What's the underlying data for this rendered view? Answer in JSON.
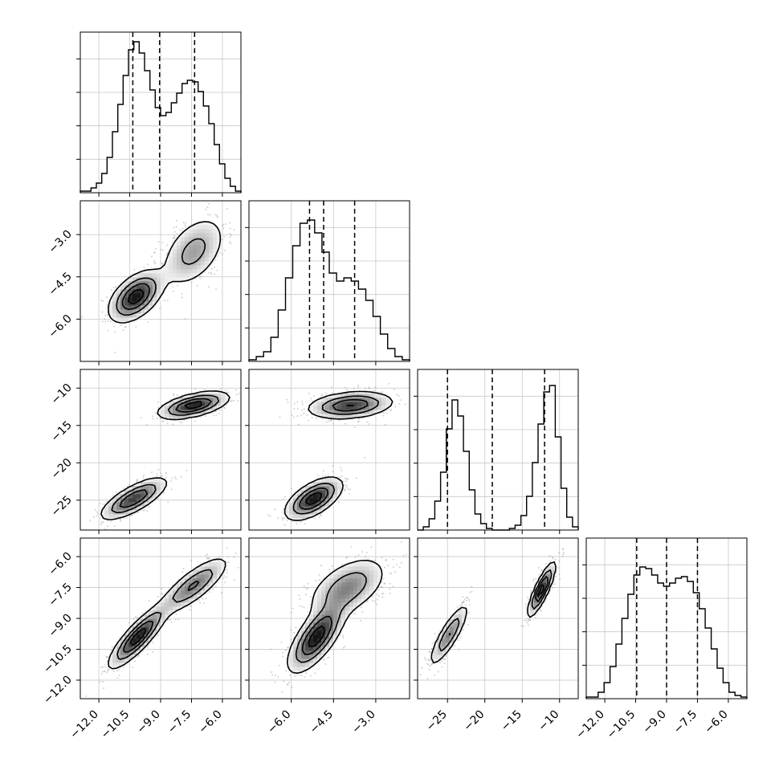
{
  "chart_data": {
    "type": "corner",
    "description_units": "data units",
    "parameters": [
      {
        "index": 0,
        "range": [
          -12.9,
          -5.1
        ],
        "ticks": [
          -12.0,
          -10.5,
          -9.0,
          -7.5,
          -6.0
        ],
        "tick_labels": [
          "−12.0",
          "−10.5",
          "−9.0",
          "−7.5",
          "−6.0"
        ]
      },
      {
        "index": 1,
        "range": [
          -7.5,
          -1.8
        ],
        "ticks": [
          -6.0,
          -4.5,
          -3.0
        ],
        "tick_labels": [
          "−6.0",
          "−4.5",
          "−3.0"
        ]
      },
      {
        "index": 2,
        "range": [
          -29,
          -7.5
        ],
        "ticks": [
          -25,
          -20,
          -15,
          -10
        ],
        "tick_labels": [
          "−25",
          "−20",
          "−15",
          "−10"
        ],
        "y_ticks": [
          -10,
          -15,
          -20,
          -25
        ],
        "y_tick_labels": [
          "−10",
          "−15",
          "−20",
          "−25"
        ]
      },
      {
        "index": 3,
        "range": [
          -12.9,
          -5.1
        ],
        "ticks": [
          -12.0,
          -10.5,
          -9.0,
          -7.5,
          -6.0
        ],
        "tick_labels": [
          "−12.0",
          "−10.5",
          "−9.0",
          "−7.5",
          "−6.0"
        ]
      }
    ],
    "histograms": [
      {
        "param": 0,
        "quantiles": [
          -10.35,
          -9.05,
          -7.35
        ],
        "counts": [
          0.01,
          0.01,
          0.03,
          0.06,
          0.12,
          0.22,
          0.38,
          0.55,
          0.73,
          0.89,
          0.94,
          0.87,
          0.76,
          0.64,
          0.53,
          0.48,
          0.5,
          0.56,
          0.62,
          0.68,
          0.7,
          0.69,
          0.63,
          0.54,
          0.43,
          0.3,
          0.18,
          0.09,
          0.04,
          0.01
        ]
      },
      {
        "param": 1,
        "quantiles": [
          -5.35,
          -4.85,
          -3.75
        ],
        "counts": [
          0.01,
          0.03,
          0.06,
          0.15,
          0.32,
          0.52,
          0.72,
          0.86,
          0.88,
          0.8,
          0.68,
          0.55,
          0.5,
          0.52,
          0.5,
          0.45,
          0.38,
          0.28,
          0.17,
          0.08,
          0.03,
          0.01
        ]
      },
      {
        "param": 2,
        "quantiles": [
          -25.0,
          -19.0,
          -12.0
        ],
        "counts": [
          0.0,
          0.02,
          0.07,
          0.18,
          0.36,
          0.63,
          0.81,
          0.71,
          0.49,
          0.25,
          0.1,
          0.04,
          0.01,
          0.0,
          0.0,
          0.0,
          0.01,
          0.03,
          0.09,
          0.21,
          0.42,
          0.66,
          0.86,
          0.9,
          0.58,
          0.26,
          0.08,
          0.02
        ]
      },
      {
        "param": 3,
        "quantiles": [
          -10.45,
          -9.0,
          -7.5
        ],
        "counts": [
          0.01,
          0.01,
          0.04,
          0.1,
          0.2,
          0.34,
          0.5,
          0.65,
          0.77,
          0.82,
          0.81,
          0.77,
          0.72,
          0.7,
          0.72,
          0.75,
          0.76,
          0.73,
          0.66,
          0.56,
          0.44,
          0.31,
          0.19,
          0.1,
          0.04,
          0.02,
          0.01
        ]
      }
    ],
    "scatter_panels": [
      {
        "x_param": 0,
        "y_param": 1,
        "clusters": [
          {
            "mean": [
              -10.2,
              -5.2
            ],
            "std": [
              0.65,
              0.45
            ],
            "rho": 0.5,
            "weight": 0.55
          },
          {
            "mean": [
              -7.4,
              -3.6
            ],
            "std": [
              0.8,
              0.65
            ],
            "rho": 0.45,
            "weight": 0.45
          }
        ]
      },
      {
        "x_param": 0,
        "y_param": 2,
        "clusters": [
          {
            "mean": [
              -10.3,
              -24.8
            ],
            "std": [
              0.8,
              1.4
            ],
            "rho": 0.75,
            "weight": 0.5
          },
          {
            "mean": [
              -7.4,
              -12.3
            ],
            "std": [
              0.85,
              0.9
            ],
            "rho": 0.55,
            "weight": 0.5
          }
        ]
      },
      {
        "x_param": 1,
        "y_param": 2,
        "clusters": [
          {
            "mean": [
              -5.2,
              -24.8
            ],
            "std": [
              0.5,
              1.4
            ],
            "rho": 0.6,
            "weight": 0.5
          },
          {
            "mean": [
              -3.9,
              -12.3
            ],
            "std": [
              0.75,
              0.9
            ],
            "rho": 0.25,
            "weight": 0.5
          }
        ]
      },
      {
        "x_param": 0,
        "y_param": 3,
        "clusters": [
          {
            "mean": [
              -10.1,
              -9.9
            ],
            "std": [
              0.7,
              0.75
            ],
            "rho": 0.85,
            "weight": 0.55
          },
          {
            "mean": [
              -7.4,
              -7.4
            ],
            "std": [
              0.85,
              0.7
            ],
            "rho": 0.8,
            "weight": 0.45
          }
        ]
      },
      {
        "x_param": 1,
        "y_param": 3,
        "clusters": [
          {
            "mean": [
              -5.1,
              -9.9
            ],
            "std": [
              0.5,
              0.85
            ],
            "rho": 0.7,
            "weight": 0.55
          },
          {
            "mean": [
              -4.0,
              -7.5
            ],
            "std": [
              0.7,
              0.75
            ],
            "rho": 0.5,
            "weight": 0.45
          }
        ]
      },
      {
        "x_param": 2,
        "y_param": 3,
        "clusters": [
          {
            "mean": [
              -24.8,
              -9.8
            ],
            "std": [
              1.3,
              0.75
            ],
            "rho": 0.85,
            "weight": 0.5
          },
          {
            "mean": [
              -12.4,
              -7.6
            ],
            "std": [
              0.9,
              0.65
            ],
            "rho": 0.85,
            "weight": 0.5
          }
        ]
      }
    ],
    "grid": true,
    "quantile_style": "dashed"
  }
}
